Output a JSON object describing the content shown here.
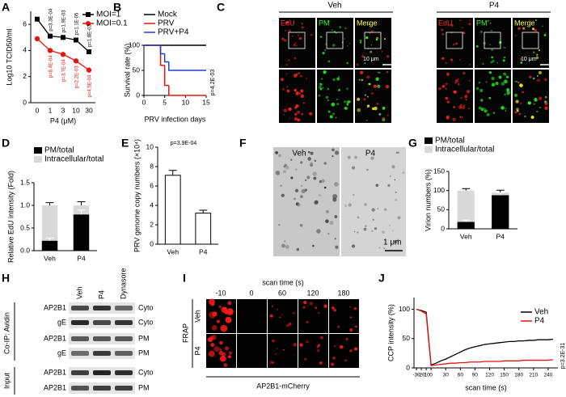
{
  "panel_labels": [
    "A",
    "B",
    "C",
    "D",
    "E",
    "F",
    "G",
    "H",
    "I",
    "J"
  ],
  "chart_data": [
    {
      "type": "line",
      "categories": [
        "0",
        "1",
        "3",
        "10",
        "30"
      ],
      "xlabel": "P4 (μM)",
      "ylabel": "Log10 TCID50/ml",
      "ylim": [
        0,
        7
      ],
      "yticks": [
        0,
        2,
        4,
        6
      ],
      "legend": "upper right",
      "series": [
        {
          "name": "MOI=1",
          "color": "#000000",
          "marker": "square",
          "values": [
            6.4,
            5.1,
            5.0,
            4.8,
            3.9
          ],
          "annotations": [
            null,
            "p=3.3E-04",
            "p=1.9E-03",
            "p=1.1E-05",
            "p=1.8E-03"
          ]
        },
        {
          "name": "MOI=0.1",
          "color": "#e8140f",
          "marker": "circle",
          "values": [
            4.9,
            4.0,
            3.7,
            3.2,
            2.5
          ],
          "annotations": [
            null,
            "p=8.4E-04",
            "p=3.7E-04",
            "p=2.2E-03",
            "p=4.5E-04"
          ]
        }
      ]
    },
    {
      "type": "line",
      "step": true,
      "x": [
        0,
        4,
        5,
        6
      ],
      "xlim": [
        0,
        15
      ],
      "xticks": [
        0,
        5,
        10,
        15
      ],
      "ylim": [
        0,
        100
      ],
      "yticks": [
        0,
        50,
        100
      ],
      "xlabel": "PRV infection days",
      "ylabel": "Survival rate (%)",
      "legend": "upper left",
      "annotation": "p=4.2E-03",
      "series": [
        {
          "name": "Mock",
          "color": "#000000",
          "values": [
            100,
            100,
            100,
            100
          ]
        },
        {
          "name": "PRV",
          "color": "#e8140f",
          "values": [
            100,
            60,
            20,
            0
          ]
        },
        {
          "name": "PRV+P4",
          "color": "#1f3fd0",
          "values": [
            100,
            83,
            67,
            50
          ]
        }
      ]
    },
    {
      "type": "bar",
      "stacked": true,
      "categories": [
        "Veh",
        "P4"
      ],
      "ylabel": "Relative EdU intensity (Fold)",
      "ylim": [
        0,
        1.5
      ],
      "yticks": [
        {
          "value": 0,
          "label": "0.0"
        },
        0.5,
        {
          "value": 1,
          "label": "1.0"
        },
        1.5
      ],
      "legend": "upper left",
      "series": [
        {
          "name": "PM/total",
          "color": "#000000",
          "values": [
            0.22,
            0.8
          ],
          "errors": [
            0.06,
            0.1
          ]
        },
        {
          "name": "Intracellular/total",
          "color": "#d9d9d9",
          "values": [
            0.78,
            0.2
          ],
          "errors": [
            0.06,
            0.08
          ]
        }
      ]
    },
    {
      "type": "bar",
      "categories": [
        "Veh",
        "P4"
      ],
      "ylabel": "PRV genome copy numbers (×10⁴)",
      "ylim": [
        0,
        10
      ],
      "yticks": [
        0,
        2,
        4,
        6,
        8,
        10
      ],
      "annotation": "p=3.9E-04",
      "series": [
        {
          "color": "#ffffff",
          "edgecolor": "#000000",
          "values": [
            7.1,
            3.2
          ],
          "errors": [
            0.5,
            0.3
          ]
        }
      ]
    },
    {
      "type": "bar",
      "stacked": true,
      "categories": [
        "Veh",
        "P4"
      ],
      "ylabel": "Virion numbers (%)",
      "ylim": [
        0,
        150
      ],
      "yticks": [
        0,
        50,
        100,
        150
      ],
      "legend": "upper left",
      "series": [
        {
          "name": "PM/total",
          "color": "#000000",
          "values": [
            18,
            88
          ],
          "errors": [
            5,
            6
          ]
        },
        {
          "name": "Intracellular/total",
          "color": "#d9d9d9",
          "values": [
            82,
            7
          ],
          "errors": [
            5,
            6
          ]
        }
      ]
    },
    {
      "type": "line",
      "x": [
        -30,
        -20,
        -10,
        0,
        10,
        20,
        30,
        40,
        50,
        60,
        70,
        80,
        90,
        100,
        110,
        120,
        130,
        140,
        150,
        160,
        170,
        180,
        190,
        200,
        210,
        220,
        230,
        240,
        250
      ],
      "xlim": [
        -35,
        260
      ],
      "xticks": [
        -30,
        -20,
        -10,
        0,
        30,
        60,
        90,
        120,
        150,
        180,
        210,
        240
      ],
      "ylim": [
        0,
        120
      ],
      "yticks": [
        0,
        50,
        100
      ],
      "xlabel": "scan time (s)",
      "ylabel": "CCP intensity (%)",
      "legend": "upper right",
      "annotation": "p=3.2E-31",
      "series": [
        {
          "name": "Veh",
          "color": "#000000",
          "values": [
            100,
            98,
            95,
            5,
            8,
            12,
            15,
            19,
            23,
            27,
            31,
            34,
            36,
            38,
            40,
            41,
            42,
            43,
            44,
            45,
            45,
            46,
            46,
            47,
            47,
            48,
            48,
            48,
            49
          ]
        },
        {
          "name": "P4",
          "color": "#e8140f",
          "values": [
            100,
            97,
            92,
            4,
            5,
            6,
            7,
            8,
            8,
            9,
            9,
            10,
            10,
            10,
            11,
            11,
            11,
            11,
            12,
            12,
            12,
            12,
            13,
            13,
            13,
            13,
            13,
            13,
            14
          ]
        }
      ]
    }
  ],
  "panel_c": {
    "groups": [
      "Veh",
      "P4"
    ],
    "channels": [
      "EdU",
      "PM",
      "Merge"
    ],
    "scale_bar": "10 μm"
  },
  "panel_f": {
    "labels": [
      "Veh",
      "P4"
    ],
    "scale_bar": "1 μm"
  },
  "panel_h": {
    "lanes": [
      "Veh",
      "P4",
      "Dynasore"
    ],
    "groups": [
      "Co-IP: Avidin",
      "Input"
    ],
    "rows": [
      {
        "protein": "AP2B1",
        "fraction": "Cyto"
      },
      {
        "protein": "gE",
        "fraction": "Cyto"
      },
      {
        "protein": "AP2B1",
        "fraction": "PM"
      },
      {
        "protein": "gE",
        "fraction": "PM"
      },
      {
        "protein": "AP2B1",
        "fraction": "Cyto"
      },
      {
        "protein": "AP2B1",
        "fraction": "PM"
      }
    ]
  },
  "panel_i": {
    "axis_label": "scan time (s)",
    "times": [
      "-10",
      "0",
      "60",
      "120",
      "180"
    ],
    "row_group": "FRAP",
    "rows": [
      "Veh",
      "P4"
    ],
    "caption": "AP2B1-mCherry"
  }
}
